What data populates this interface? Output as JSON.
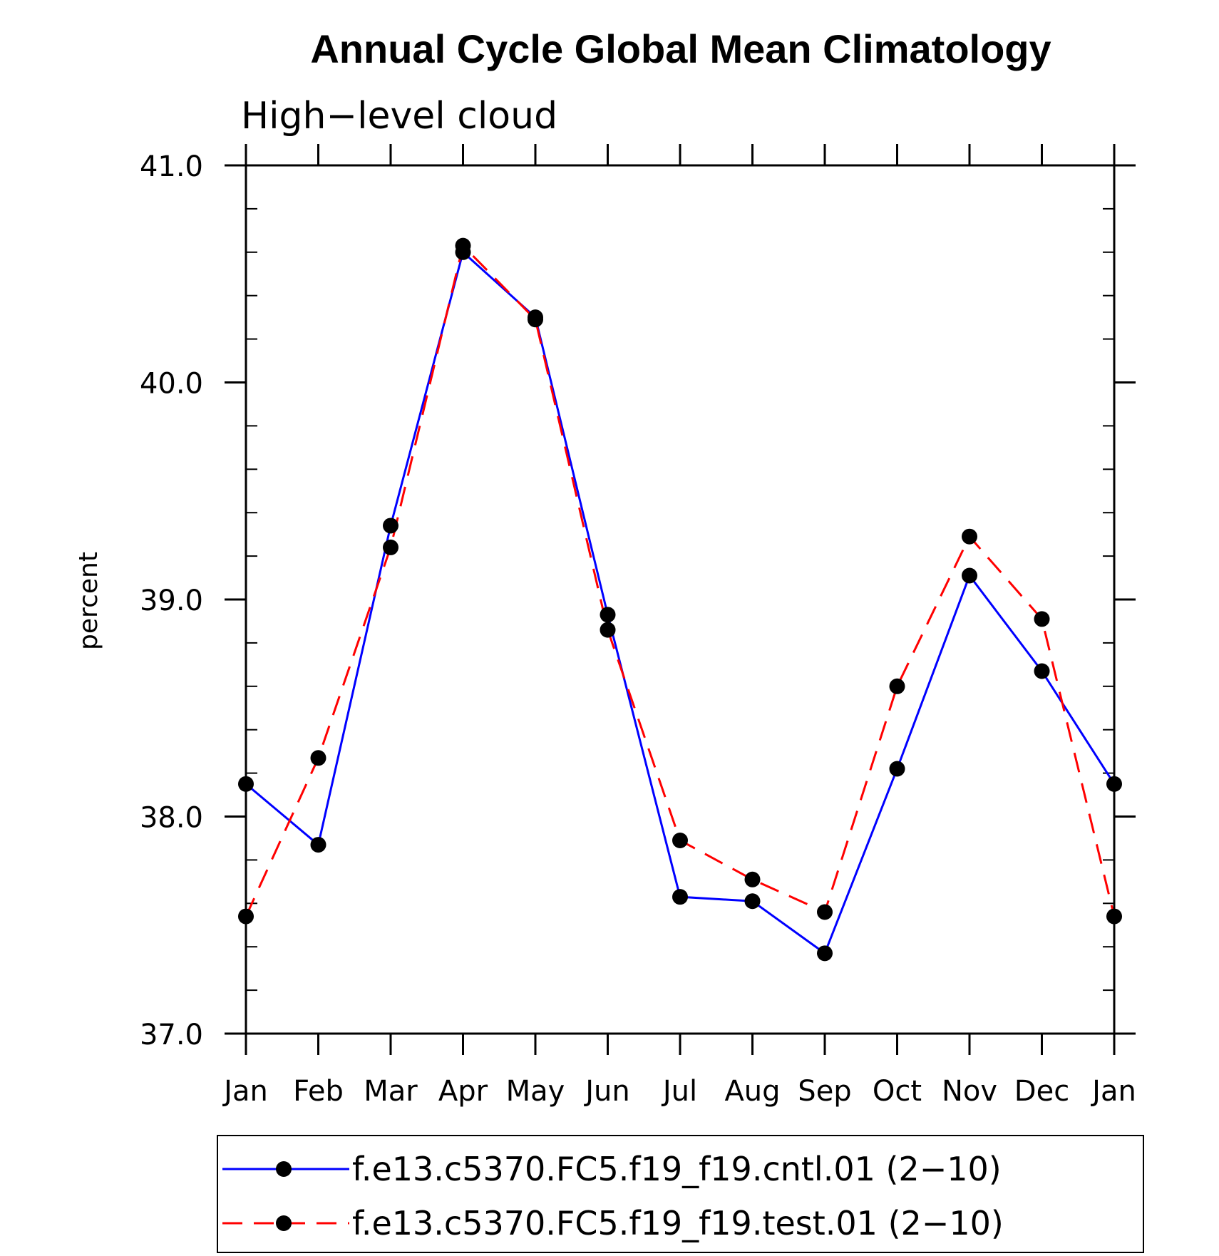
{
  "chart_data": {
    "type": "line",
    "title": "Annual Cycle Global Mean Climatology",
    "subtitle": "High−level cloud",
    "xlabel": "",
    "ylabel": "percent",
    "categories": [
      "Jan",
      "Feb",
      "Mar",
      "Apr",
      "May",
      "Jun",
      "Jul",
      "Aug",
      "Sep",
      "Oct",
      "Nov",
      "Dec",
      "Jan"
    ],
    "ylim": [
      37.0,
      41.0
    ],
    "yticks": [
      "37.0",
      "38.0",
      "39.0",
      "40.0",
      "41.0"
    ],
    "series": [
      {
        "name": "f.e13.c5370.FC5.f19_f19.cntl.01 (2−10)",
        "color": "#0000ff",
        "dash": "solid",
        "marker": "filled-circle",
        "values": [
          38.15,
          37.87,
          39.34,
          40.6,
          40.3,
          38.93,
          37.63,
          37.61,
          37.37,
          38.22,
          39.11,
          38.67,
          38.15
        ]
      },
      {
        "name": "f.e13.c5370.FC5.f19_f19.test.01 (2−10)",
        "color": "#ff0000",
        "dash": "dashed",
        "marker": "filled-circle",
        "values": [
          37.54,
          38.27,
          39.24,
          40.63,
          40.29,
          38.86,
          37.89,
          37.71,
          37.56,
          38.6,
          39.29,
          38.91,
          37.54
        ]
      }
    ],
    "legend_position": "bottom",
    "grid": false
  }
}
